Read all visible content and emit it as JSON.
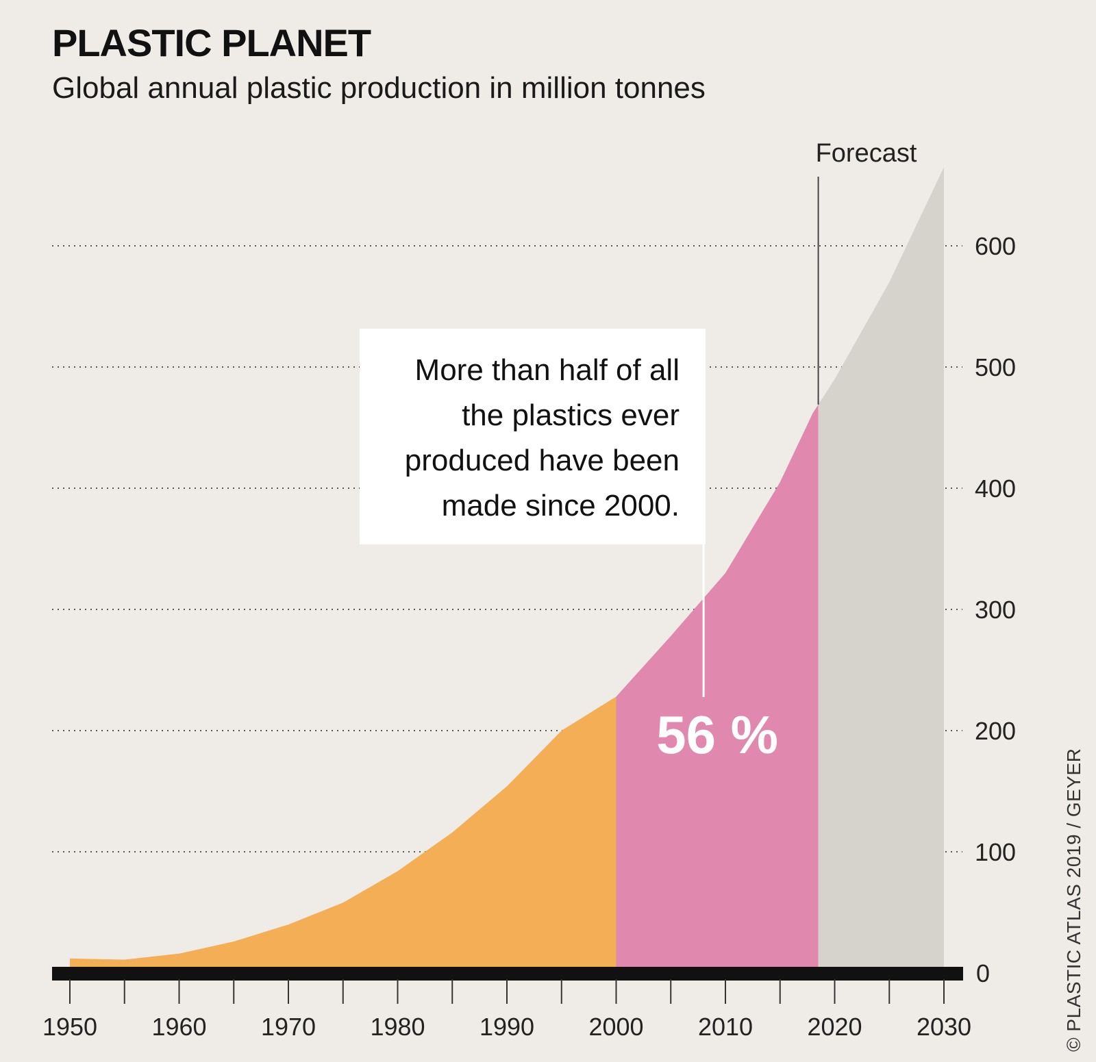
{
  "chart_data": {
    "type": "area",
    "title": "PLASTIC PLANET",
    "subtitle": "Global annual plastic production in million tonnes",
    "x": [
      1950,
      1955,
      1960,
      1965,
      1970,
      1975,
      1980,
      1985,
      1990,
      1995,
      2000,
      2005,
      2010,
      2015,
      2018,
      2020,
      2025,
      2030
    ],
    "y": [
      12,
      11,
      16,
      26,
      40,
      58,
      84,
      116,
      154,
      200,
      228,
      278,
      330,
      405,
      462,
      490,
      570,
      665
    ],
    "segments": [
      {
        "from": 1950,
        "to": 2000,
        "color": "#f3ae56"
      },
      {
        "from": 2000,
        "to": 2018.5,
        "color": "#e088ad"
      },
      {
        "from": 2018.5,
        "to": 2030,
        "color": "#d6d3cd"
      }
    ],
    "xlim": [
      1950,
      2030
    ],
    "ylim": [
      0,
      665
    ],
    "x_ticks": [
      1950,
      1960,
      1970,
      1980,
      1990,
      2000,
      2010,
      2020,
      2030
    ],
    "y_ticks": [
      0,
      100,
      200,
      300,
      400,
      500,
      600
    ],
    "grid": true,
    "forecast_label": "Forecast",
    "forecast_start": 2018.5,
    "annotation": {
      "lines": [
        "More than half of all",
        "the plastics ever",
        "produced have been",
        "made since 2000."
      ],
      "highlight": "56 %",
      "pointer_year": 2008
    }
  },
  "credit": "PLASTIC ATLAS 2019 / GEYER",
  "colors": {
    "background": "#efece8",
    "axis": "#111111",
    "grid": "#555555"
  }
}
